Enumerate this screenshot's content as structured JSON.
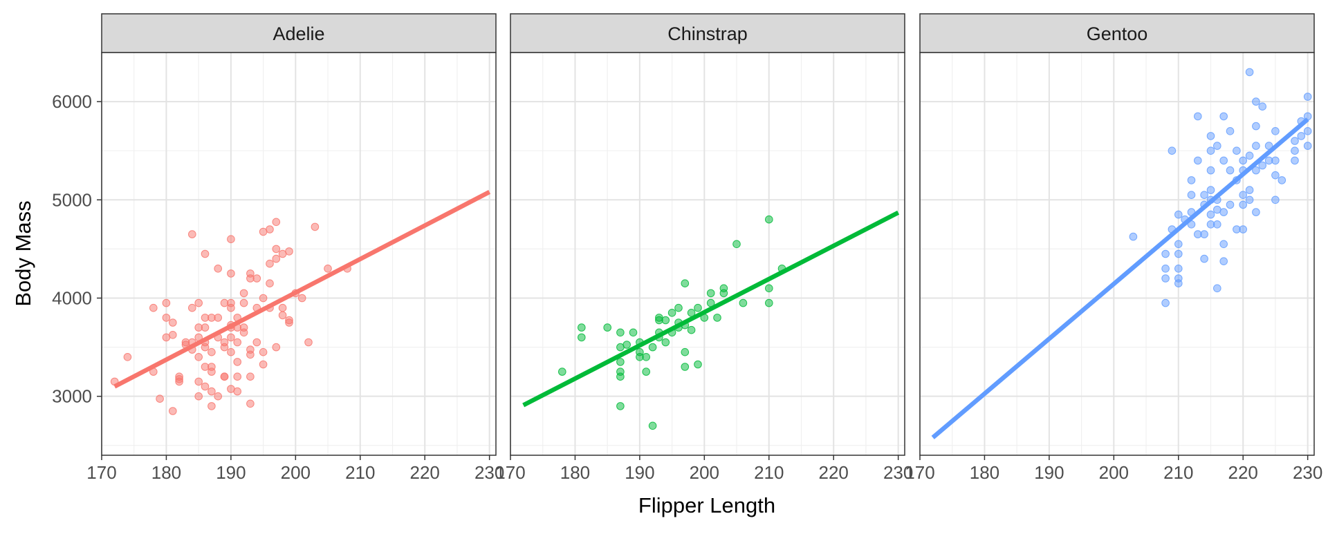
{
  "chart_data": {
    "type": "scatter",
    "facet_by": "species",
    "xlabel": "Flipper Length",
    "ylabel": "Body Mass",
    "xlim": [
      170,
      231
    ],
    "ylim": [
      2400,
      6500
    ],
    "x_ticks": [
      170,
      180,
      190,
      200,
      210,
      220,
      230
    ],
    "y_ticks": [
      3000,
      4000,
      5000,
      6000
    ],
    "grid": true,
    "legend": "none",
    "panels": [
      {
        "name": "Adelie",
        "color": "#F8766D",
        "trend": {
          "x": [
            172,
            230
          ],
          "y": [
            3100,
            5080
          ]
        },
        "points": [
          [
            172,
            3150
          ],
          [
            174,
            3400
          ],
          [
            178,
            3250
          ],
          [
            178,
            3900
          ],
          [
            179,
            2975
          ],
          [
            180,
            3950
          ],
          [
            180,
            3800
          ],
          [
            180,
            3600
          ],
          [
            181,
            3750
          ],
          [
            181,
            3625
          ],
          [
            181,
            2850
          ],
          [
            182,
            3200
          ],
          [
            182,
            3150
          ],
          [
            182,
            3175
          ],
          [
            183,
            3550
          ],
          [
            184,
            4650
          ],
          [
            184,
            3900
          ],
          [
            184,
            3475
          ],
          [
            184,
            3550
          ],
          [
            185,
            3700
          ],
          [
            185,
            3600
          ],
          [
            185,
            3150
          ],
          [
            185,
            3000
          ],
          [
            185,
            3400
          ],
          [
            186,
            3800
          ],
          [
            186,
            3500
          ],
          [
            186,
            3550
          ],
          [
            186,
            4450
          ],
          [
            186,
            3300
          ],
          [
            186,
            3100
          ],
          [
            187,
            3800
          ],
          [
            187,
            3450
          ],
          [
            187,
            3250
          ],
          [
            187,
            3050
          ],
          [
            187,
            3300
          ],
          [
            187,
            2900
          ],
          [
            188,
            3800
          ],
          [
            188,
            4300
          ],
          [
            188,
            3600
          ],
          [
            188,
            3000
          ],
          [
            189,
            3500
          ],
          [
            189,
            3550
          ],
          [
            189,
            3200
          ],
          [
            189,
            3200
          ],
          [
            190,
            3950
          ],
          [
            190,
            3900
          ],
          [
            190,
            3450
          ],
          [
            190,
            4250
          ],
          [
            190,
            4600
          ],
          [
            190,
            3600
          ],
          [
            190,
            3700
          ],
          [
            190,
            3075
          ],
          [
            191,
            3700
          ],
          [
            191,
            3200
          ],
          [
            191,
            3050
          ],
          [
            191,
            3800
          ],
          [
            191,
            3350
          ],
          [
            191,
            3550
          ],
          [
            192,
            3650
          ],
          [
            192,
            4050
          ],
          [
            192,
            3950
          ],
          [
            193,
            3425
          ],
          [
            193,
            4200
          ],
          [
            193,
            3200
          ],
          [
            193,
            2925
          ],
          [
            193,
            4250
          ],
          [
            194,
            4200
          ],
          [
            194,
            3550
          ],
          [
            195,
            4000
          ],
          [
            195,
            3450
          ],
          [
            195,
            3325
          ],
          [
            195,
            4675
          ],
          [
            196,
            3900
          ],
          [
            196,
            4700
          ],
          [
            196,
            4350
          ],
          [
            196,
            4150
          ],
          [
            197,
            4500
          ],
          [
            197,
            4400
          ],
          [
            197,
            4775
          ],
          [
            198,
            3900
          ],
          [
            198,
            4450
          ],
          [
            198,
            3825
          ],
          [
            199,
            4475
          ],
          [
            199,
            3775
          ],
          [
            199,
            3750
          ],
          [
            200,
            4050
          ],
          [
            201,
            4000
          ],
          [
            202,
            3550
          ],
          [
            203,
            4725
          ],
          [
            205,
            4300
          ],
          [
            208,
            4300
          ],
          [
            194,
            3900
          ],
          [
            192,
            3700
          ],
          [
            189,
            3950
          ],
          [
            186,
            3700
          ],
          [
            185,
            3950
          ],
          [
            197,
            3500
          ],
          [
            193,
            3475
          ],
          [
            190,
            3725
          ],
          [
            183,
            3525
          ]
        ]
      },
      {
        "name": "Chinstrap",
        "color": "#00BA38",
        "trend": {
          "x": [
            172,
            230
          ],
          "y": [
            2910,
            4870
          ]
        },
        "points": [
          [
            178,
            3250
          ],
          [
            181,
            3700
          ],
          [
            181,
            3600
          ],
          [
            185,
            3700
          ],
          [
            187,
            3650
          ],
          [
            187,
            3500
          ],
          [
            187,
            3350
          ],
          [
            187,
            3200
          ],
          [
            187,
            3250
          ],
          [
            187,
            2900
          ],
          [
            188,
            3525
          ],
          [
            189,
            3650
          ],
          [
            190,
            3550
          ],
          [
            190,
            3450
          ],
          [
            190,
            3400
          ],
          [
            191,
            3400
          ],
          [
            191,
            3250
          ],
          [
            192,
            3500
          ],
          [
            192,
            2700
          ],
          [
            193,
            3800
          ],
          [
            193,
            3775
          ],
          [
            193,
            3650
          ],
          [
            193,
            3600
          ],
          [
            194,
            3775
          ],
          [
            194,
            3550
          ],
          [
            195,
            3650
          ],
          [
            195,
            3850
          ],
          [
            196,
            3900
          ],
          [
            196,
            3700
          ],
          [
            197,
            4150
          ],
          [
            197,
            3450
          ],
          [
            197,
            3300
          ],
          [
            197,
            3725
          ],
          [
            198,
            3675
          ],
          [
            198,
            3850
          ],
          [
            199,
            3900
          ],
          [
            199,
            3325
          ],
          [
            200,
            3800
          ],
          [
            201,
            4050
          ],
          [
            201,
            3950
          ],
          [
            202,
            3800
          ],
          [
            203,
            4100
          ],
          [
            203,
            4050
          ],
          [
            205,
            4550
          ],
          [
            206,
            3950
          ],
          [
            210,
            4800
          ],
          [
            210,
            4100
          ],
          [
            210,
            3950
          ],
          [
            212,
            4300
          ],
          [
            196,
            3750
          ]
        ]
      },
      {
        "name": "Gentoo",
        "color": "#619CFF",
        "trend": {
          "x": [
            172,
            230
          ],
          "y": [
            2580,
            5820
          ]
        },
        "points": [
          [
            203,
            4625
          ],
          [
            208,
            4450
          ],
          [
            208,
            3950
          ],
          [
            208,
            4300
          ],
          [
            208,
            4200
          ],
          [
            209,
            4700
          ],
          [
            209,
            5500
          ],
          [
            210,
            4850
          ],
          [
            210,
            4550
          ],
          [
            210,
            4450
          ],
          [
            210,
            4300
          ],
          [
            210,
            4200
          ],
          [
            210,
            4150
          ],
          [
            211,
            4800
          ],
          [
            212,
            4750
          ],
          [
            212,
            4875
          ],
          [
            212,
            5200
          ],
          [
            213,
            5850
          ],
          [
            213,
            5400
          ],
          [
            213,
            4650
          ],
          [
            214,
            4400
          ],
          [
            214,
            4650
          ],
          [
            214,
            4950
          ],
          [
            215,
            5650
          ],
          [
            215,
            5500
          ],
          [
            215,
            5300
          ],
          [
            215,
            5100
          ],
          [
            215,
            5000
          ],
          [
            215,
            4850
          ],
          [
            215,
            4750
          ],
          [
            216,
            5550
          ],
          [
            216,
            5000
          ],
          [
            216,
            4900
          ],
          [
            216,
            4750
          ],
          [
            216,
            4100
          ],
          [
            217,
            5850
          ],
          [
            217,
            5400
          ],
          [
            217,
            4875
          ],
          [
            217,
            4375
          ],
          [
            218,
            5700
          ],
          [
            218,
            5300
          ],
          [
            218,
            4950
          ],
          [
            219,
            5500
          ],
          [
            219,
            5200
          ],
          [
            219,
            4700
          ],
          [
            220,
            5400
          ],
          [
            220,
            5300
          ],
          [
            220,
            5050
          ],
          [
            220,
            4950
          ],
          [
            220,
            4700
          ],
          [
            221,
            6300
          ],
          [
            221,
            5450
          ],
          [
            221,
            5100
          ],
          [
            221,
            5000
          ],
          [
            222,
            6000
          ],
          [
            222,
            5550
          ],
          [
            222,
            5750
          ],
          [
            222,
            5300
          ],
          [
            222,
            4875
          ],
          [
            223,
            5950
          ],
          [
            223,
            5350
          ],
          [
            224,
            5550
          ],
          [
            224,
            5400
          ],
          [
            225,
            5700
          ],
          [
            225,
            5250
          ],
          [
            225,
            5400
          ],
          [
            225,
            5000
          ],
          [
            226,
            5200
          ],
          [
            228,
            5600
          ],
          [
            228,
            5500
          ],
          [
            228,
            5400
          ],
          [
            229,
            5800
          ],
          [
            229,
            5650
          ],
          [
            230,
            5700
          ],
          [
            230,
            6050
          ],
          [
            230,
            5850
          ],
          [
            230,
            5550
          ],
          [
            217,
            4550
          ],
          [
            214,
            5050
          ],
          [
            212,
            5050
          ]
        ]
      }
    ]
  }
}
